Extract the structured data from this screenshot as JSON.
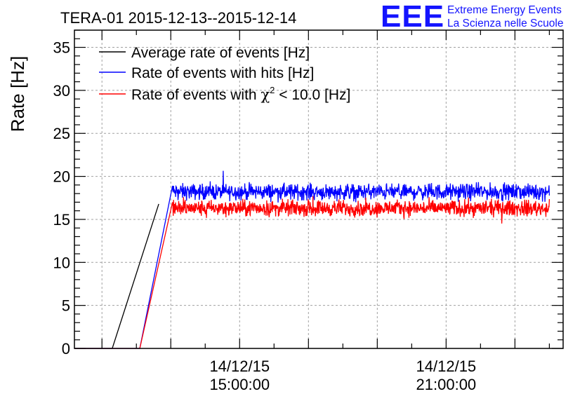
{
  "header": {
    "title": "TERA-01 2015-12-13--2015-12-14",
    "logo_text": "EEE",
    "logo_line1": "Extreme Energy Events",
    "logo_line2": "La Scienza nelle Scuole"
  },
  "colors": {
    "average": "#000000",
    "hits": "#0000ff",
    "chi2": "#ff0000",
    "grid": "#a0a0a0",
    "logo": "#1414ff"
  },
  "chart_data": {
    "type": "line",
    "title": "TERA-01 2015-12-13--2015-12-14",
    "ylabel": "Rate [Hz]",
    "xlabel": "",
    "x_unit": "hours since 2015-12-14 00:00",
    "xlim": [
      10.2,
      24.4
    ],
    "ylim": [
      0,
      37
    ],
    "grid": true,
    "yticks": [
      0,
      5,
      10,
      15,
      20,
      25,
      30,
      35
    ],
    "xticks": [
      {
        "x": 15,
        "label_date": "14/12/15",
        "label_time": "15:00:00"
      },
      {
        "x": 21,
        "label_date": "14/12/15",
        "label_time": "21:00:00"
      }
    ],
    "legend_position": "top-left",
    "series": [
      {
        "name": "Average rate of events [Hz]",
        "legend_label": "Average rate of events [Hz]",
        "color": "#000000",
        "points": [
          [
            10.2,
            0
          ],
          [
            11.3,
            0
          ],
          [
            12.65,
            16.8
          ]
        ]
      },
      {
        "name": "Rate of events with hits [Hz]",
        "legend_label": "Rate of events with hits [Hz]",
        "color": "#0000ff",
        "points": [
          [
            10.2,
            0
          ],
          [
            12.1,
            0
          ],
          [
            13.05,
            18.9
          ],
          [
            24.0,
            18.0
          ]
        ],
        "mean_plateau": 18.2,
        "noise_amplitude": 0.7
      },
      {
        "name": "Rate of events with χ² < 10.0 [Hz]",
        "legend_label_prefix": "Rate of events with ",
        "legend_label_chi": "χ",
        "legend_label_sup": "2",
        "legend_label_suffix": " < 10.0 [Hz]",
        "color": "#ff0000",
        "points": [
          [
            10.2,
            0
          ],
          [
            12.1,
            0
          ],
          [
            13.05,
            17.0
          ],
          [
            24.0,
            16.0
          ]
        ],
        "mean_plateau": 16.3,
        "noise_amplitude": 0.7
      }
    ]
  }
}
